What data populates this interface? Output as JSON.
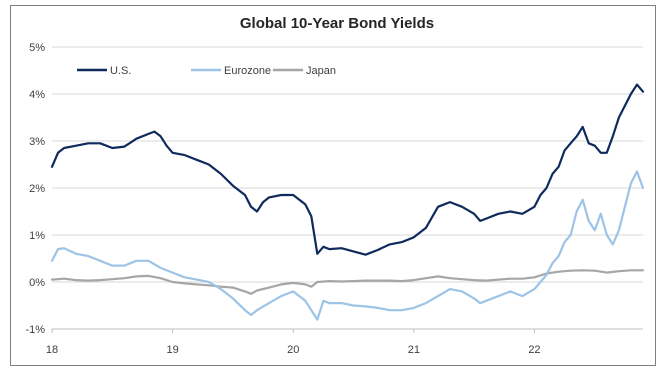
{
  "chart_data": {
    "type": "line",
    "title": "Global 10-Year Bond Yields",
    "xlabel": "",
    "ylabel": "",
    "x_ticks": [
      "18",
      "19",
      "20",
      "21",
      "22"
    ],
    "y_ticks": [
      "5%",
      "4%",
      "3%",
      "2%",
      "1%",
      "0%",
      "-1%"
    ],
    "xlim": [
      2018.0,
      2022.9
    ],
    "ylim": [
      -1,
      5
    ],
    "grid": "horizontal",
    "legend_position": "top-left",
    "series": [
      {
        "name": "U.S.",
        "color": "#0f2a5c",
        "points": [
          [
            2018.0,
            2.45
          ],
          [
            2018.05,
            2.75
          ],
          [
            2018.1,
            2.85
          ],
          [
            2018.2,
            2.9
          ],
          [
            2018.3,
            2.95
          ],
          [
            2018.4,
            2.95
          ],
          [
            2018.5,
            2.85
          ],
          [
            2018.6,
            2.88
          ],
          [
            2018.7,
            3.05
          ],
          [
            2018.8,
            3.15
          ],
          [
            2018.85,
            3.2
          ],
          [
            2018.9,
            3.1
          ],
          [
            2018.95,
            2.9
          ],
          [
            2019.0,
            2.75
          ],
          [
            2019.1,
            2.7
          ],
          [
            2019.2,
            2.6
          ],
          [
            2019.3,
            2.5
          ],
          [
            2019.4,
            2.3
          ],
          [
            2019.5,
            2.05
          ],
          [
            2019.6,
            1.85
          ],
          [
            2019.65,
            1.6
          ],
          [
            2019.7,
            1.5
          ],
          [
            2019.75,
            1.7
          ],
          [
            2019.8,
            1.8
          ],
          [
            2019.9,
            1.85
          ],
          [
            2020.0,
            1.85
          ],
          [
            2020.1,
            1.65
          ],
          [
            2020.15,
            1.4
          ],
          [
            2020.2,
            0.6
          ],
          [
            2020.25,
            0.75
          ],
          [
            2020.3,
            0.7
          ],
          [
            2020.4,
            0.72
          ],
          [
            2020.5,
            0.65
          ],
          [
            2020.6,
            0.58
          ],
          [
            2020.7,
            0.68
          ],
          [
            2020.8,
            0.8
          ],
          [
            2020.9,
            0.85
          ],
          [
            2021.0,
            0.95
          ],
          [
            2021.1,
            1.15
          ],
          [
            2021.2,
            1.6
          ],
          [
            2021.3,
            1.7
          ],
          [
            2021.4,
            1.6
          ],
          [
            2021.5,
            1.45
          ],
          [
            2021.55,
            1.3
          ],
          [
            2021.6,
            1.35
          ],
          [
            2021.7,
            1.45
          ],
          [
            2021.8,
            1.5
          ],
          [
            2021.9,
            1.45
          ],
          [
            2022.0,
            1.6
          ],
          [
            2022.05,
            1.85
          ],
          [
            2022.1,
            2.0
          ],
          [
            2022.15,
            2.3
          ],
          [
            2022.2,
            2.45
          ],
          [
            2022.25,
            2.8
          ],
          [
            2022.3,
            2.95
          ],
          [
            2022.35,
            3.1
          ],
          [
            2022.4,
            3.3
          ],
          [
            2022.45,
            2.95
          ],
          [
            2022.5,
            2.9
          ],
          [
            2022.55,
            2.75
          ],
          [
            2022.6,
            2.75
          ],
          [
            2022.65,
            3.1
          ],
          [
            2022.7,
            3.5
          ],
          [
            2022.75,
            3.75
          ],
          [
            2022.8,
            4.0
          ],
          [
            2022.85,
            4.2
          ],
          [
            2022.9,
            4.05
          ]
        ]
      },
      {
        "name": "Eurozone",
        "color": "#9dc3e6",
        "points": [
          [
            2018.0,
            0.45
          ],
          [
            2018.05,
            0.7
          ],
          [
            2018.1,
            0.72
          ],
          [
            2018.2,
            0.6
          ],
          [
            2018.3,
            0.55
          ],
          [
            2018.4,
            0.45
          ],
          [
            2018.5,
            0.35
          ],
          [
            2018.6,
            0.35
          ],
          [
            2018.7,
            0.45
          ],
          [
            2018.8,
            0.45
          ],
          [
            2018.9,
            0.3
          ],
          [
            2019.0,
            0.2
          ],
          [
            2019.1,
            0.1
          ],
          [
            2019.2,
            0.05
          ],
          [
            2019.3,
            0.0
          ],
          [
            2019.4,
            -0.15
          ],
          [
            2019.5,
            -0.35
          ],
          [
            2019.6,
            -0.6
          ],
          [
            2019.65,
            -0.7
          ],
          [
            2019.7,
            -0.6
          ],
          [
            2019.8,
            -0.45
          ],
          [
            2019.9,
            -0.3
          ],
          [
            2020.0,
            -0.2
          ],
          [
            2020.1,
            -0.4
          ],
          [
            2020.15,
            -0.6
          ],
          [
            2020.2,
            -0.8
          ],
          [
            2020.25,
            -0.4
          ],
          [
            2020.3,
            -0.45
          ],
          [
            2020.4,
            -0.45
          ],
          [
            2020.5,
            -0.5
          ],
          [
            2020.6,
            -0.52
          ],
          [
            2020.7,
            -0.55
          ],
          [
            2020.8,
            -0.6
          ],
          [
            2020.9,
            -0.6
          ],
          [
            2021.0,
            -0.55
          ],
          [
            2021.1,
            -0.45
          ],
          [
            2021.2,
            -0.3
          ],
          [
            2021.3,
            -0.15
          ],
          [
            2021.4,
            -0.2
          ],
          [
            2021.5,
            -0.35
          ],
          [
            2021.55,
            -0.45
          ],
          [
            2021.6,
            -0.4
          ],
          [
            2021.7,
            -0.3
          ],
          [
            2021.8,
            -0.2
          ],
          [
            2021.9,
            -0.3
          ],
          [
            2022.0,
            -0.15
          ],
          [
            2022.05,
            0.0
          ],
          [
            2022.1,
            0.15
          ],
          [
            2022.15,
            0.4
          ],
          [
            2022.2,
            0.55
          ],
          [
            2022.25,
            0.85
          ],
          [
            2022.3,
            1.0
          ],
          [
            2022.35,
            1.5
          ],
          [
            2022.4,
            1.75
          ],
          [
            2022.45,
            1.3
          ],
          [
            2022.5,
            1.1
          ],
          [
            2022.55,
            1.45
          ],
          [
            2022.6,
            1.0
          ],
          [
            2022.65,
            0.8
          ],
          [
            2022.7,
            1.1
          ],
          [
            2022.75,
            1.6
          ],
          [
            2022.8,
            2.1
          ],
          [
            2022.85,
            2.35
          ],
          [
            2022.9,
            2.0
          ]
        ]
      },
      {
        "name": "Japan",
        "color": "#a6a6a6",
        "points": [
          [
            2018.0,
            0.05
          ],
          [
            2018.1,
            0.07
          ],
          [
            2018.2,
            0.04
          ],
          [
            2018.3,
            0.03
          ],
          [
            2018.4,
            0.04
          ],
          [
            2018.5,
            0.06
          ],
          [
            2018.6,
            0.08
          ],
          [
            2018.7,
            0.12
          ],
          [
            2018.8,
            0.13
          ],
          [
            2018.9,
            0.08
          ],
          [
            2019.0,
            0.0
          ],
          [
            2019.1,
            -0.03
          ],
          [
            2019.2,
            -0.05
          ],
          [
            2019.3,
            -0.07
          ],
          [
            2019.4,
            -0.1
          ],
          [
            2019.5,
            -0.12
          ],
          [
            2019.6,
            -0.2
          ],
          [
            2019.65,
            -0.25
          ],
          [
            2019.7,
            -0.18
          ],
          [
            2019.8,
            -0.12
          ],
          [
            2019.9,
            -0.05
          ],
          [
            2020.0,
            -0.02
          ],
          [
            2020.1,
            -0.05
          ],
          [
            2020.15,
            -0.1
          ],
          [
            2020.2,
            0.0
          ],
          [
            2020.3,
            0.02
          ],
          [
            2020.4,
            0.01
          ],
          [
            2020.5,
            0.02
          ],
          [
            2020.6,
            0.03
          ],
          [
            2020.7,
            0.03
          ],
          [
            2020.8,
            0.03
          ],
          [
            2020.9,
            0.02
          ],
          [
            2021.0,
            0.04
          ],
          [
            2021.1,
            0.08
          ],
          [
            2021.2,
            0.12
          ],
          [
            2021.3,
            0.08
          ],
          [
            2021.4,
            0.06
          ],
          [
            2021.5,
            0.04
          ],
          [
            2021.6,
            0.03
          ],
          [
            2021.7,
            0.05
          ],
          [
            2021.8,
            0.07
          ],
          [
            2021.9,
            0.07
          ],
          [
            2022.0,
            0.1
          ],
          [
            2022.1,
            0.18
          ],
          [
            2022.2,
            0.22
          ],
          [
            2022.3,
            0.24
          ],
          [
            2022.4,
            0.25
          ],
          [
            2022.5,
            0.24
          ],
          [
            2022.6,
            0.2
          ],
          [
            2022.7,
            0.23
          ],
          [
            2022.8,
            0.25
          ],
          [
            2022.9,
            0.25
          ]
        ]
      }
    ]
  },
  "colors": {
    "grid": "#d9d9d9",
    "axis": "#bfbfbf",
    "text": "#404040"
  }
}
